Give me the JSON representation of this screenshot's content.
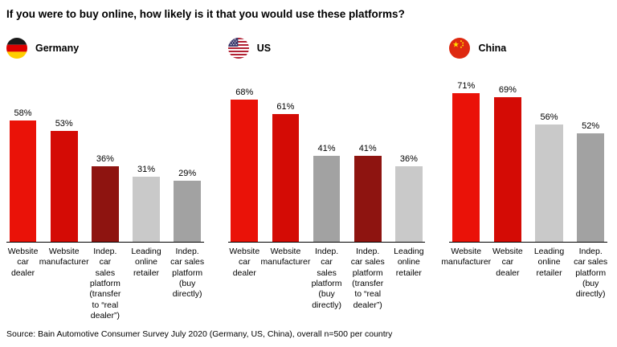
{
  "source": "Source: Bain Automotive Consumer Survey July 2020 (Germany, US, China), overall n=500 per country",
  "palette": {
    "red_bright": "#ea1208",
    "red": "#d40b05",
    "dark_red": "#8e1410",
    "gray_light": "#c9c9c9",
    "gray": "#a2a2a2"
  },
  "icons": {
    "germany": "germany-flag-icon",
    "us": "us-flag-icon",
    "china": "china-flag-icon"
  },
  "chart_data": {
    "type": "bar",
    "title": "If you were to buy online, how likely is it that you would use these platforms?",
    "unit": "%",
    "ylim": [
      0,
      100
    ],
    "grid": false,
    "value_labels": true,
    "legend": "none",
    "panels": [
      {
        "id": "germany",
        "country": "Germany",
        "flag": "germany",
        "bars": [
          {
            "label": "Website\ncar\ndealer",
            "value": 58,
            "color": "red_bright"
          },
          {
            "label": "Website\nmanufacturer",
            "value": 53,
            "color": "red"
          },
          {
            "label": "Indep.\ncar\nsales\nplatform\n(transfer\nto “real\ndealer”)",
            "value": 36,
            "color": "dark_red"
          },
          {
            "label": "Leading\nonline\nretailer",
            "value": 31,
            "color": "gray_light"
          },
          {
            "label": "Indep.\ncar sales\nplatform\n(buy\ndirectly)",
            "value": 29,
            "color": "gray"
          }
        ]
      },
      {
        "id": "us",
        "country": "US",
        "flag": "us",
        "bars": [
          {
            "label": "Website\ncar\ndealer",
            "value": 68,
            "color": "red_bright"
          },
          {
            "label": "Website\nmanufacturer",
            "value": 61,
            "color": "red"
          },
          {
            "label": "Indep.\ncar\nsales\nplatform\n(buy\ndirectly)",
            "value": 41,
            "color": "gray"
          },
          {
            "label": "Indep.\ncar sales\nplatform\n(transfer\nto “real\ndealer”)",
            "value": 41,
            "color": "dark_red"
          },
          {
            "label": "Leading\nonline\nretailer",
            "value": 36,
            "color": "gray_light"
          }
        ]
      },
      {
        "id": "china",
        "country": "China",
        "flag": "china",
        "bars": [
          {
            "label": "Website\nmanufacturer",
            "value": 71,
            "color": "red_bright"
          },
          {
            "label": "Website\ncar\ndealer",
            "value": 69,
            "color": "red"
          },
          {
            "label": "Leading\nonline\nretailer",
            "value": 56,
            "color": "gray_light"
          },
          {
            "label": "Indep.\ncar sales\nplatform\n(buy\ndirectly)",
            "value": 52,
            "color": "gray"
          }
        ]
      }
    ]
  }
}
